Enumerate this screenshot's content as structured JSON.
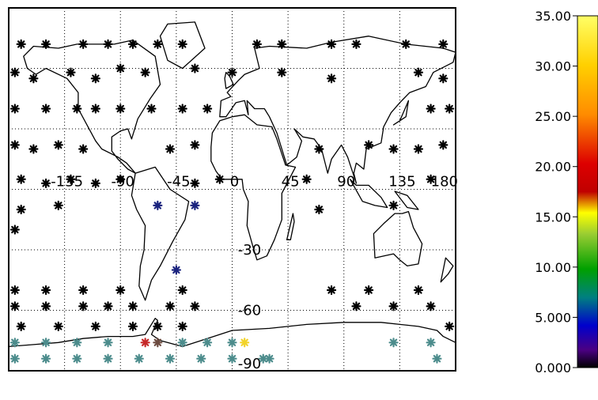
{
  "map": {
    "longitude_labels": [
      "-135",
      "-90",
      "-45",
      "0",
      "45",
      "90",
      "135",
      "180"
    ],
    "latitude_labels": [
      "-30",
      "-60",
      "-90"
    ],
    "stations": [
      {
        "lon": -170,
        "lat": 72,
        "color": "#000000"
      },
      {
        "lon": -150,
        "lat": 72,
        "color": "#000000"
      },
      {
        "lon": -120,
        "lat": 72,
        "color": "#000000"
      },
      {
        "lon": -100,
        "lat": 72,
        "color": "#000000"
      },
      {
        "lon": -80,
        "lat": 72,
        "color": "#000000"
      },
      {
        "lon": -60,
        "lat": 72,
        "color": "#000000"
      },
      {
        "lon": -40,
        "lat": 72,
        "color": "#000000"
      },
      {
        "lon": 20,
        "lat": 72,
        "color": "#000000"
      },
      {
        "lon": 40,
        "lat": 72,
        "color": "#000000"
      },
      {
        "lon": 80,
        "lat": 72,
        "color": "#000000"
      },
      {
        "lon": 100,
        "lat": 72,
        "color": "#000000"
      },
      {
        "lon": 140,
        "lat": 72,
        "color": "#000000"
      },
      {
        "lon": 170,
        "lat": 72,
        "color": "#000000"
      },
      {
        "lon": -175,
        "lat": 58,
        "color": "#000000"
      },
      {
        "lon": -160,
        "lat": 55,
        "color": "#000000"
      },
      {
        "lon": -130,
        "lat": 58,
        "color": "#000000"
      },
      {
        "lon": -110,
        "lat": 55,
        "color": "#000000"
      },
      {
        "lon": -90,
        "lat": 60,
        "color": "#000000"
      },
      {
        "lon": -70,
        "lat": 58,
        "color": "#000000"
      },
      {
        "lon": -30,
        "lat": 60,
        "color": "#000000"
      },
      {
        "lon": 0,
        "lat": 58,
        "color": "#000000"
      },
      {
        "lon": 40,
        "lat": 58,
        "color": "#000000"
      },
      {
        "lon": 80,
        "lat": 55,
        "color": "#000000"
      },
      {
        "lon": 150,
        "lat": 58,
        "color": "#000000"
      },
      {
        "lon": 170,
        "lat": 55,
        "color": "#000000"
      },
      {
        "lon": -175,
        "lat": 40,
        "color": "#000000"
      },
      {
        "lon": -150,
        "lat": 40,
        "color": "#000000"
      },
      {
        "lon": -125,
        "lat": 40,
        "color": "#000000"
      },
      {
        "lon": -110,
        "lat": 40,
        "color": "#000000"
      },
      {
        "lon": -90,
        "lat": 40,
        "color": "#000000"
      },
      {
        "lon": -65,
        "lat": 40,
        "color": "#000000"
      },
      {
        "lon": -40,
        "lat": 40,
        "color": "#000000"
      },
      {
        "lon": -20,
        "lat": 40,
        "color": "#000000"
      },
      {
        "lon": 160,
        "lat": 40,
        "color": "#000000"
      },
      {
        "lon": 175,
        "lat": 40,
        "color": "#000000"
      },
      {
        "lon": -175,
        "lat": 22,
        "color": "#000000"
      },
      {
        "lon": -160,
        "lat": 20,
        "color": "#000000"
      },
      {
        "lon": -140,
        "lat": 22,
        "color": "#000000"
      },
      {
        "lon": -120,
        "lat": 20,
        "color": "#000000"
      },
      {
        "lon": -50,
        "lat": 20,
        "color": "#000000"
      },
      {
        "lon": -30,
        "lat": 22,
        "color": "#000000"
      },
      {
        "lon": 70,
        "lat": 20,
        "color": "#000000"
      },
      {
        "lon": 110,
        "lat": 22,
        "color": "#000000"
      },
      {
        "lon": 130,
        "lat": 20,
        "color": "#000000"
      },
      {
        "lon": 150,
        "lat": 20,
        "color": "#000000"
      },
      {
        "lon": 170,
        "lat": 22,
        "color": "#000000"
      },
      {
        "lon": -170,
        "lat": 5,
        "color": "#000000"
      },
      {
        "lon": -150,
        "lat": 3,
        "color": "#000000"
      },
      {
        "lon": -130,
        "lat": 5,
        "color": "#000000"
      },
      {
        "lon": -110,
        "lat": 3,
        "color": "#000000"
      },
      {
        "lon": -90,
        "lat": 5,
        "color": "#000000"
      },
      {
        "lon": -30,
        "lat": 3,
        "color": "#000000"
      },
      {
        "lon": -10,
        "lat": 5,
        "color": "#000000"
      },
      {
        "lon": 60,
        "lat": 5,
        "color": "#000000"
      },
      {
        "lon": 160,
        "lat": 5,
        "color": "#000000"
      },
      {
        "lon": -170,
        "lat": -10,
        "color": "#000000"
      },
      {
        "lon": -140,
        "lat": -8,
        "color": "#000000"
      },
      {
        "lon": -60,
        "lat": -8,
        "color": "#1a237e"
      },
      {
        "lon": -30,
        "lat": -8,
        "color": "#1a237e"
      },
      {
        "lon": 70,
        "lat": -10,
        "color": "#000000"
      },
      {
        "lon": 130,
        "lat": -8,
        "color": "#000000"
      },
      {
        "lon": -175,
        "lat": -20,
        "color": "#000000"
      },
      {
        "lon": -45,
        "lat": -40,
        "color": "#1a237e"
      },
      {
        "lon": -175,
        "lat": -50,
        "color": "#000000"
      },
      {
        "lon": -150,
        "lat": -50,
        "color": "#000000"
      },
      {
        "lon": -120,
        "lat": -50,
        "color": "#000000"
      },
      {
        "lon": -90,
        "lat": -50,
        "color": "#000000"
      },
      {
        "lon": -40,
        "lat": -50,
        "color": "#000000"
      },
      {
        "lon": 80,
        "lat": -50,
        "color": "#000000"
      },
      {
        "lon": 110,
        "lat": -50,
        "color": "#000000"
      },
      {
        "lon": 150,
        "lat": -50,
        "color": "#000000"
      },
      {
        "lon": -175,
        "lat": -58,
        "color": "#000000"
      },
      {
        "lon": -150,
        "lat": -58,
        "color": "#000000"
      },
      {
        "lon": -120,
        "lat": -58,
        "color": "#000000"
      },
      {
        "lon": -100,
        "lat": -58,
        "color": "#000000"
      },
      {
        "lon": -80,
        "lat": -58,
        "color": "#000000"
      },
      {
        "lon": -50,
        "lat": -58,
        "color": "#000000"
      },
      {
        "lon": -30,
        "lat": -58,
        "color": "#000000"
      },
      {
        "lon": 100,
        "lat": -58,
        "color": "#000000"
      },
      {
        "lon": 130,
        "lat": -58,
        "color": "#000000"
      },
      {
        "lon": 160,
        "lat": -58,
        "color": "#000000"
      },
      {
        "lon": -170,
        "lat": -68,
        "color": "#000000"
      },
      {
        "lon": -140,
        "lat": -68,
        "color": "#000000"
      },
      {
        "lon": -110,
        "lat": -68,
        "color": "#000000"
      },
      {
        "lon": -80,
        "lat": -68,
        "color": "#000000"
      },
      {
        "lon": -60,
        "lat": -68,
        "color": "#000000"
      },
      {
        "lon": -40,
        "lat": -68,
        "color": "#000000"
      },
      {
        "lon": 175,
        "lat": -68,
        "color": "#000000"
      },
      {
        "lon": -175,
        "lat": -76,
        "color": "#4c8c8c"
      },
      {
        "lon": -150,
        "lat": -76,
        "color": "#4c8c8c"
      },
      {
        "lon": -125,
        "lat": -76,
        "color": "#4c8c8c"
      },
      {
        "lon": -100,
        "lat": -76,
        "color": "#4c8c8c"
      },
      {
        "lon": -70,
        "lat": -76,
        "color": "#c62828"
      },
      {
        "lon": -60,
        "lat": -76,
        "color": "#6d4c41"
      },
      {
        "lon": -40,
        "lat": -76,
        "color": "#4c8c8c"
      },
      {
        "lon": -20,
        "lat": -76,
        "color": "#4c8c8c"
      },
      {
        "lon": 0,
        "lat": -76,
        "color": "#4c8c8c"
      },
      {
        "lon": 10,
        "lat": -76,
        "color": "#f2d32a"
      },
      {
        "lon": 130,
        "lat": -76,
        "color": "#4c8c8c"
      },
      {
        "lon": 160,
        "lat": -76,
        "color": "#4c8c8c"
      },
      {
        "lon": -175,
        "lat": -84,
        "color": "#4c8c8c"
      },
      {
        "lon": -150,
        "lat": -84,
        "color": "#4c8c8c"
      },
      {
        "lon": -125,
        "lat": -84,
        "color": "#4c8c8c"
      },
      {
        "lon": -100,
        "lat": -84,
        "color": "#4c8c8c"
      },
      {
        "lon": -75,
        "lat": -84,
        "color": "#4c8c8c"
      },
      {
        "lon": -50,
        "lat": -84,
        "color": "#4c8c8c"
      },
      {
        "lon": -25,
        "lat": -84,
        "color": "#4c8c8c"
      },
      {
        "lon": 0,
        "lat": -84,
        "color": "#4c8c8c"
      },
      {
        "lon": 25,
        "lat": -84,
        "color": "#4c8c8c"
      },
      {
        "lon": 30,
        "lat": -84,
        "color": "#4c8c8c"
      },
      {
        "lon": 165,
        "lat": -84,
        "color": "#4c8c8c"
      }
    ]
  },
  "colorbar": {
    "tick_labels": [
      "35.00",
      "30.00",
      "25.00",
      "20.00",
      "15.00",
      "10.00",
      "5.000",
      "0.000"
    ],
    "gradient_stops": [
      {
        "color": "#ffff66",
        "pos": 0
      },
      {
        "color": "#ffd000",
        "pos": 0.14
      },
      {
        "color": "#ff8c00",
        "pos": 0.28
      },
      {
        "color": "#dd0000",
        "pos": 0.42
      },
      {
        "color": "#c00000",
        "pos": 0.5
      },
      {
        "color": "#ffff00",
        "pos": 0.56
      },
      {
        "color": "#9acd32",
        "pos": 0.62
      },
      {
        "color": "#00a000",
        "pos": 0.72
      },
      {
        "color": "#008080",
        "pos": 0.8
      },
      {
        "color": "#0000cd",
        "pos": 0.88
      },
      {
        "color": "#4b0082",
        "pos": 0.95
      },
      {
        "color": "#000000",
        "pos": 1
      }
    ]
  }
}
